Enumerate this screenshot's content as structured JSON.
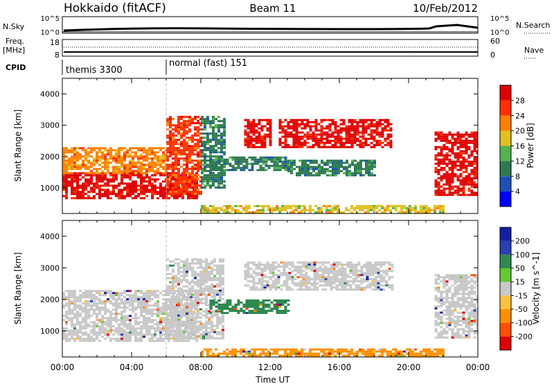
{
  "header": {
    "station": "Hokkaido (fitACF)",
    "beam": "Beam 11",
    "date": "10/Feb/2012"
  },
  "top_panels": {
    "nsky_label": "N.Sky",
    "nsky_ticks": [
      "10^5",
      "10^0"
    ],
    "nsearch_label": "N.Search",
    "nsearch_ticks": [
      "10^5",
      "10^0"
    ],
    "freq_label_1": "Freq.",
    "freq_label_2": "[MHz]",
    "freq_ticks": [
      "18",
      "8"
    ],
    "nave_label": "Nave",
    "nave_ticks": [
      "60",
      "0"
    ],
    "cpid_label": "CPID",
    "cpid_modes": [
      "themis 3300",
      "normal (fast) 151"
    ],
    "mode_change_hour": 6
  },
  "chart_data": [
    {
      "type": "heatmap",
      "title": "",
      "xlabel": "",
      "ylabel": "Slant Range [km]",
      "x_range_hours": [
        0,
        24
      ],
      "ylim": [
        180,
        4500
      ],
      "yticks": [
        "4000",
        "3000",
        "2000",
        "1000"
      ],
      "colorbar": {
        "label": "Power [dB]",
        "ticks": [
          "28",
          "24",
          "20",
          "16",
          "12",
          "8",
          "4"
        ],
        "colors": [
          "#0000ff",
          "#1c50b4",
          "#2e7a50",
          "#50b450",
          "#e0c020",
          "#ff8000",
          "#ff3000",
          "#e00000"
        ]
      },
      "regions": [
        {
          "x": [
            0,
            7.8
          ],
          "y": [
            700,
            1500
          ],
          "level": 28
        },
        {
          "x": [
            0,
            6
          ],
          "y": [
            1500,
            2300
          ],
          "level": 18
        },
        {
          "x": [
            6,
            8
          ],
          "y": [
            800,
            3300
          ],
          "level": 24
        },
        {
          "x": [
            8,
            9.3
          ],
          "y": [
            1000,
            3300
          ],
          "level": 8
        },
        {
          "x": [
            8.5,
            13
          ],
          "y": [
            1600,
            2000
          ],
          "level": 6
        },
        {
          "x": [
            10.5,
            12
          ],
          "y": [
            2300,
            3200
          ],
          "level": 28
        },
        {
          "x": [
            12.5,
            19
          ],
          "y": [
            2300,
            3200
          ],
          "level": 26
        },
        {
          "x": [
            13,
            18
          ],
          "y": [
            1400,
            1900
          ],
          "level": 6
        },
        {
          "x": [
            8,
            22
          ],
          "y": [
            250,
            450
          ],
          "level": 16
        },
        {
          "x": [
            21.5,
            24
          ],
          "y": [
            800,
            2800
          ],
          "level": 26
        }
      ]
    },
    {
      "type": "heatmap",
      "title": "",
      "xlabel": "Time UT",
      "ylabel": "Slant Range [km]",
      "x_range_hours": [
        0,
        24
      ],
      "xticks": [
        "00:00",
        "04:00",
        "08:00",
        "12:00",
        "16:00",
        "20:00",
        "00:00"
      ],
      "ylim": [
        180,
        4500
      ],
      "yticks": [
        "4000",
        "3000",
        "2000",
        "1000"
      ],
      "colorbar": {
        "label": "Velocity [m s^-1]",
        "ticks": [
          "200",
          "100",
          "50",
          "15",
          "-15",
          "-50",
          "-100",
          "-200"
        ],
        "colors": [
          "#e00000",
          "#ff5000",
          "#ff9000",
          "#ffc040",
          "#c8c8c8",
          "#64c832",
          "#2e8a50",
          "#2840b0",
          "#1020a0"
        ]
      },
      "regions": [
        {
          "x": [
            0,
            7.8
          ],
          "y": [
            700,
            2300
          ],
          "velocity": 0
        },
        {
          "x": [
            6,
            9.3
          ],
          "y": [
            800,
            3300
          ],
          "velocity": 0
        },
        {
          "x": [
            8.5,
            13
          ],
          "y": [
            1600,
            2000
          ],
          "velocity": 60
        },
        {
          "x": [
            10.5,
            19
          ],
          "y": [
            2300,
            3200
          ],
          "velocity": 0
        },
        {
          "x": [
            8,
            22
          ],
          "y": [
            250,
            450
          ],
          "velocity": -40
        },
        {
          "x": [
            21.5,
            24
          ],
          "y": [
            800,
            2800
          ],
          "velocity": 0
        }
      ]
    }
  ]
}
